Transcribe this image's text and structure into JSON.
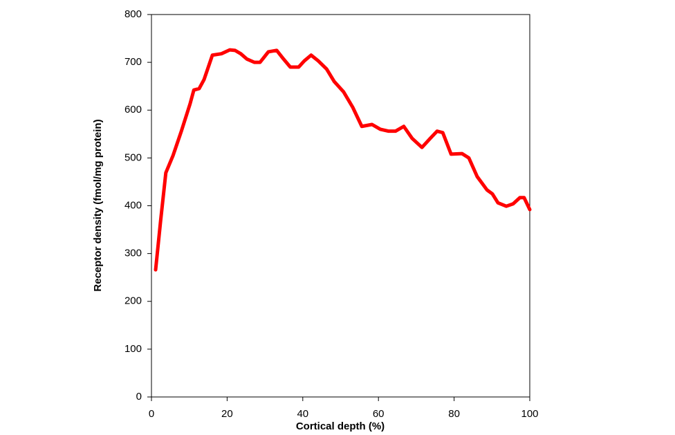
{
  "chart_data": {
    "type": "line",
    "x_label": "Cortical depth (%)",
    "y_label": "Receptor density (fmol/mg protein)",
    "x": [
      1.1,
      2.4,
      3.8,
      5.7,
      7.9,
      10.2,
      11.2,
      12.6,
      13.9,
      16.1,
      18.5,
      20.7,
      22.1,
      23.6,
      25.2,
      27.2,
      28.7,
      30.9,
      33.1,
      34.9,
      36.7,
      38.9,
      40.4,
      42.2,
      44.1,
      46.3,
      48.3,
      50.8,
      53.2,
      55.6,
      58.3,
      60.5,
      62.7,
      64.5,
      66.7,
      68.9,
      71.5,
      73.7,
      75.5,
      77.0,
      79.2,
      82.1,
      83.9,
      86.1,
      88.7,
      90.1,
      91.6,
      93.8,
      95.6,
      97.4,
      98.5,
      100
    ],
    "series": [
      {
        "color": "#ff0000",
        "values": [
          266,
          367,
          469,
          505,
          556,
          613,
          642,
          645,
          664,
          715,
          718,
          726,
          725,
          718,
          707,
          700,
          700,
          722,
          725,
          707,
          690,
          690,
          703,
          715,
          703,
          686,
          660,
          638,
          606,
          566,
          570,
          560,
          556,
          556,
          566,
          541,
          522,
          541,
          556,
          553,
          508,
          509,
          500,
          461,
          433,
          425,
          406,
          399,
          404,
          417,
          417,
          392
        ]
      }
    ],
    "xlim": [
      0,
      100
    ],
    "xticks": [
      0,
      20,
      40,
      60,
      80,
      100
    ],
    "ylim": [
      0,
      800
    ],
    "yticks": [
      0,
      100,
      200,
      300,
      400,
      500,
      600,
      700,
      800
    ]
  }
}
